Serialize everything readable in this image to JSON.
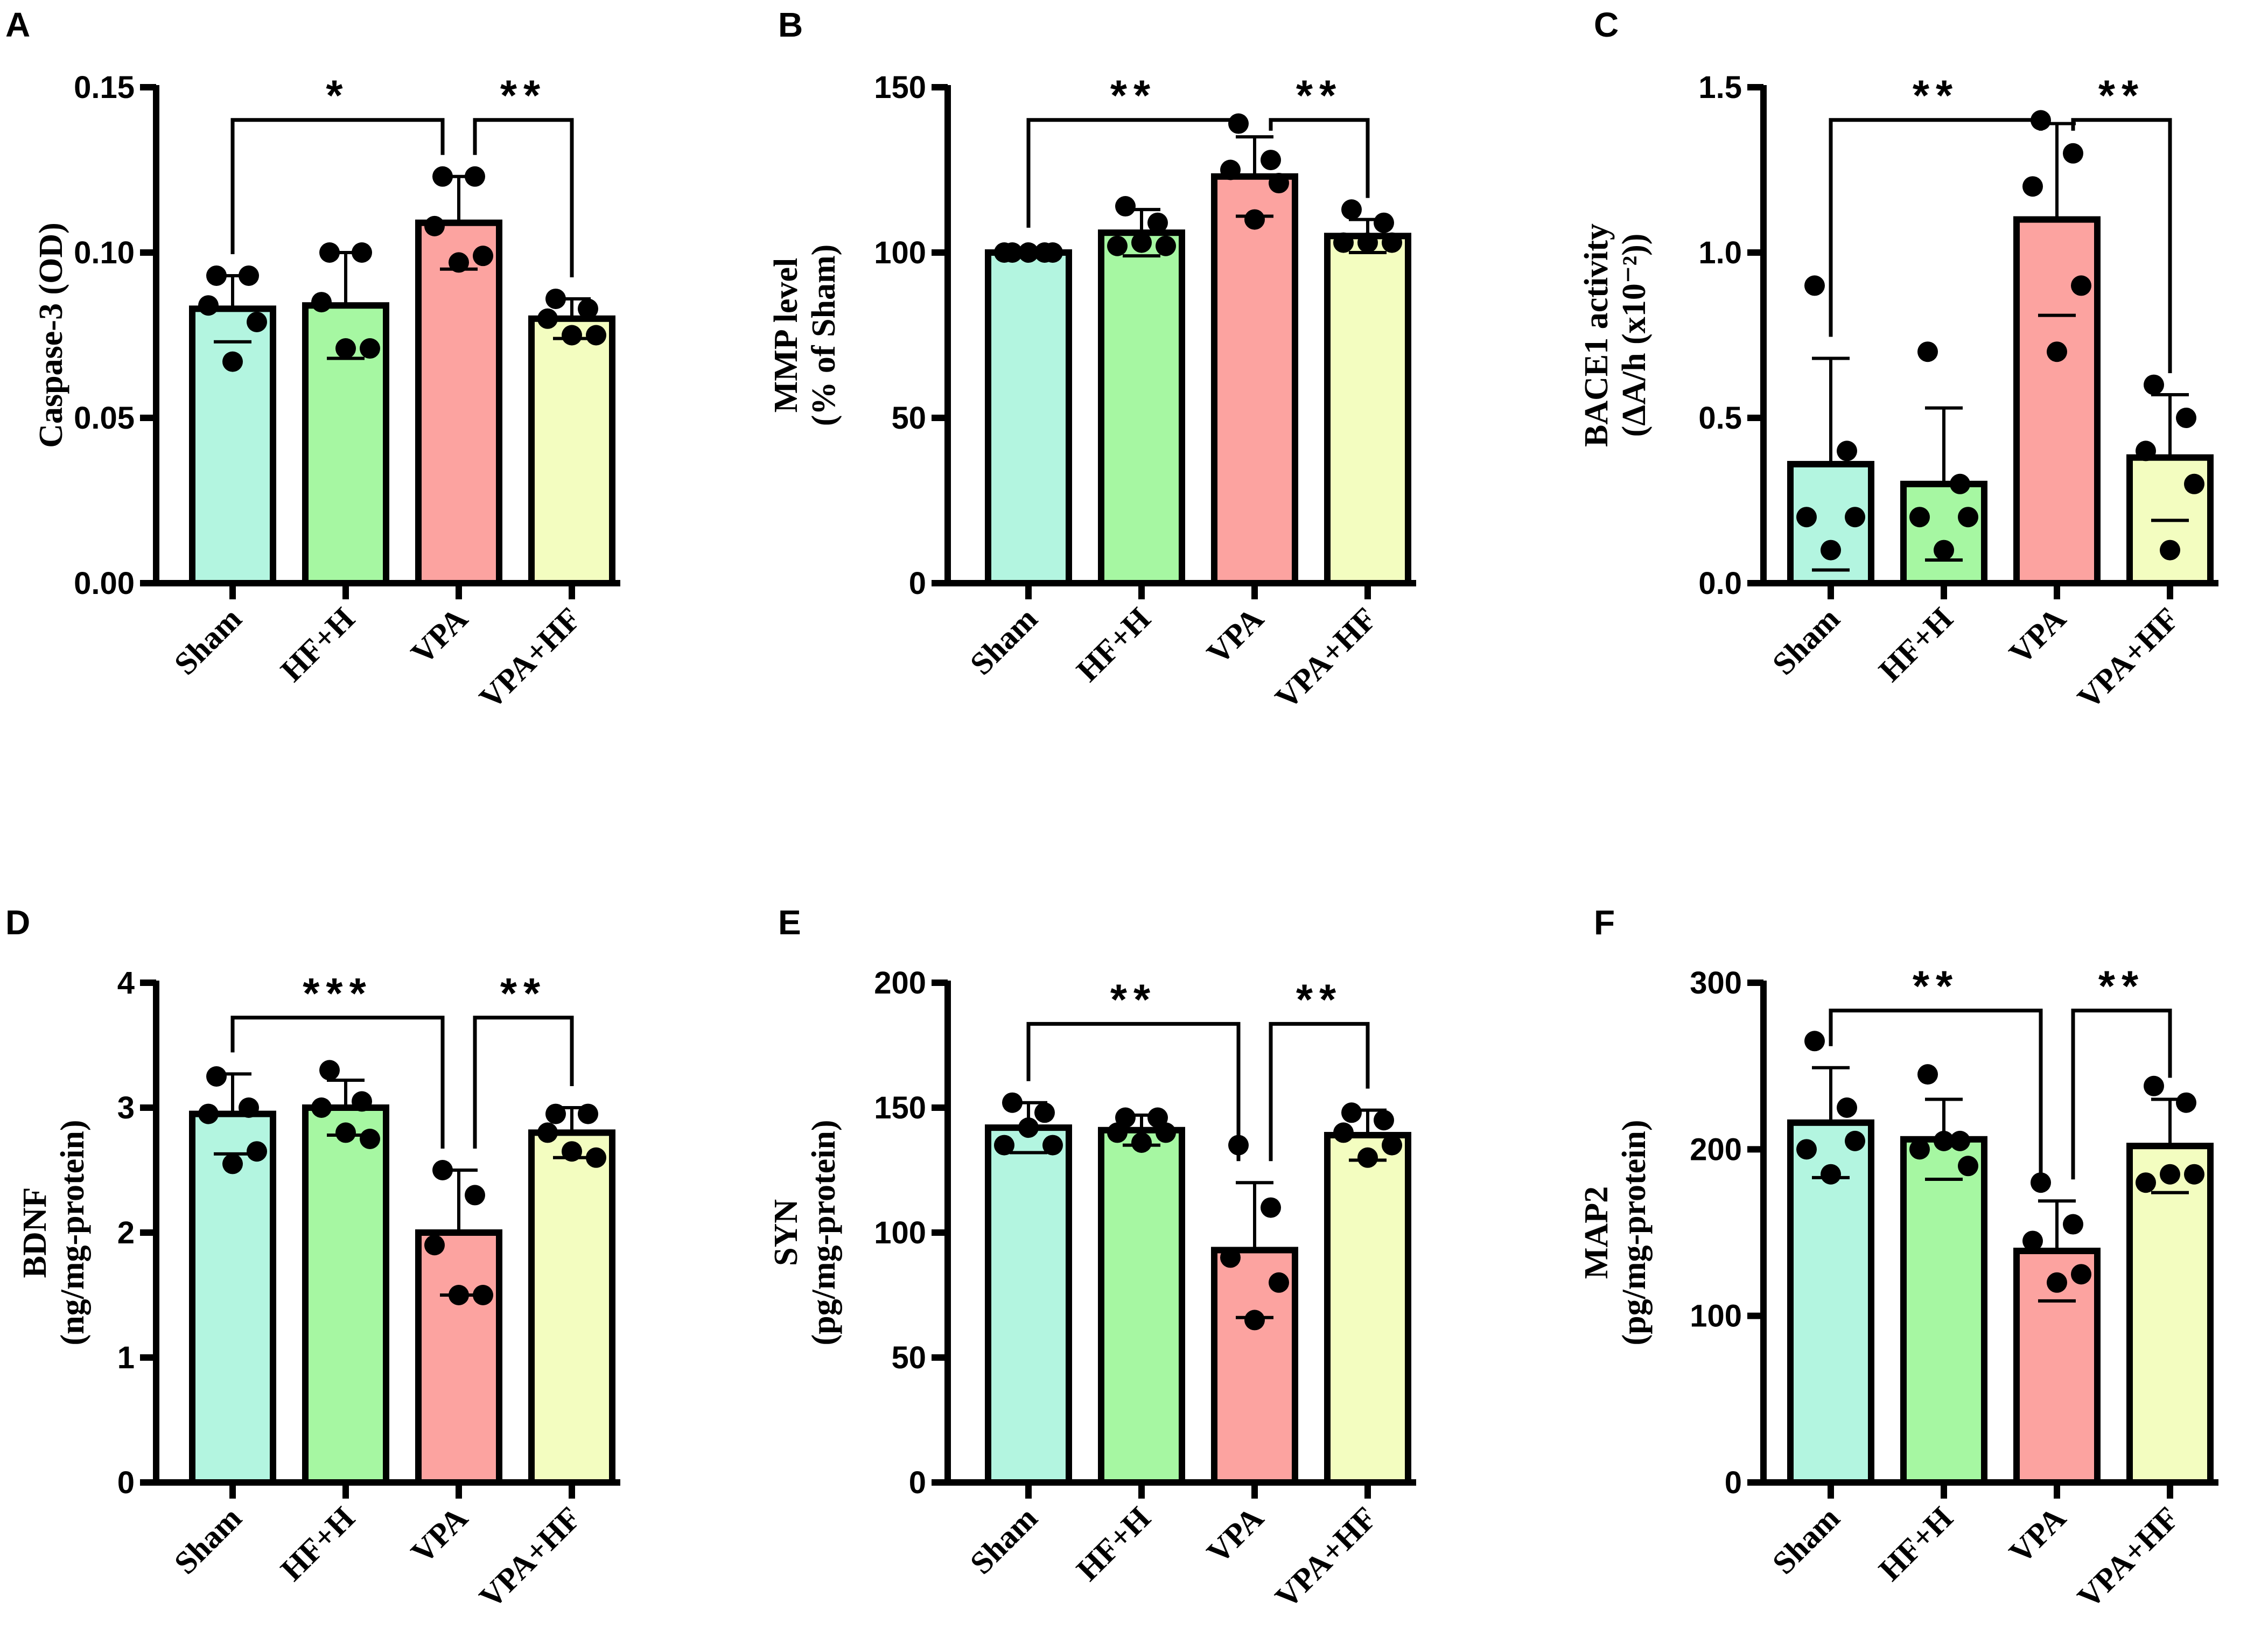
{
  "colors": {
    "Sham": "#b3f5e0",
    "HF+H": "#a6f7a2",
    "VPA": "#fca3a0",
    "VPA+HF": "#f3fdc0",
    "ink": "#000000"
  },
  "chart_data": [
    {
      "panel": "A",
      "type": "bar",
      "categories": [
        "Sham",
        "HF+H",
        "VPA",
        "VPA+HF"
      ],
      "ylabel": [
        "Caspase-3 (OD)"
      ],
      "ylim": [
        0,
        0.15
      ],
      "yticks": [
        "0.00",
        "0.05",
        "0.10",
        "0.15"
      ],
      "ytick_values": [
        0,
        0.05,
        0.1,
        0.15
      ],
      "values": [
        0.083,
        0.084,
        0.109,
        0.08
      ],
      "sd": [
        0.01,
        0.016,
        0.014,
        0.006
      ],
      "points": [
        [
          0.093,
          0.093,
          0.084,
          0.079,
          0.067
        ],
        [
          0.1,
          0.1,
          0.085,
          0.071,
          0.071
        ],
        [
          0.123,
          0.123,
          0.108,
          0.099,
          0.097
        ],
        [
          0.086,
          0.083,
          0.08,
          0.075,
          0.075
        ]
      ],
      "comparisons": [
        {
          "from": 0,
          "to": 2,
          "label": "*",
          "y": 0.145
        },
        {
          "from": 2,
          "to": 3,
          "label": "**",
          "y": 0.145
        }
      ]
    },
    {
      "panel": "B",
      "type": "bar",
      "categories": [
        "Sham",
        "HF+H",
        "VPA",
        "VPA+HF"
      ],
      "ylabel": [
        "MMP level",
        "(% of Sham)"
      ],
      "ylim": [
        0,
        150
      ],
      "yticks": [
        "0",
        "50",
        "100",
        "150"
      ],
      "ytick_values": [
        0,
        50,
        100,
        150
      ],
      "values": [
        100,
        106,
        123,
        105
      ],
      "sd": [
        1,
        7,
        12,
        5
      ],
      "points": [
        [
          100,
          100,
          100,
          100,
          100
        ],
        [
          114,
          109,
          102,
          102,
          103
        ],
        [
          139,
          128,
          125,
          121,
          110
        ],
        [
          113,
          109,
          103,
          103,
          103
        ]
      ],
      "comparisons": [
        {
          "from": 0,
          "to": 2,
          "label": "**",
          "y": 145
        },
        {
          "from": 2,
          "to": 3,
          "label": "**",
          "y": 145
        }
      ]
    },
    {
      "panel": "C",
      "type": "bar",
      "categories": [
        "Sham",
        "HF+H",
        "VPA",
        "VPA+HF"
      ],
      "ylabel": [
        "BACE1 activity",
        "(ΔA/h (x10⁻²))"
      ],
      "ylim": [
        0,
        1.5
      ],
      "yticks": [
        "0.0",
        "0.5",
        "1.0",
        "1.5"
      ],
      "ytick_values": [
        0,
        0.5,
        1.0,
        1.5
      ],
      "values": [
        0.36,
        0.3,
        1.1,
        0.38
      ],
      "sd": [
        0.32,
        0.23,
        0.29,
        0.19
      ],
      "points": [
        [
          0.9,
          0.4,
          0.2,
          0.2,
          0.1
        ],
        [
          0.7,
          0.3,
          0.2,
          0.2,
          0.1
        ],
        [
          1.4,
          1.3,
          1.2,
          0.9,
          0.7
        ],
        [
          0.6,
          0.5,
          0.4,
          0.3,
          0.1
        ]
      ],
      "comparisons": [
        {
          "from": 0,
          "to": 2,
          "label": "**",
          "y": 1.45
        },
        {
          "from": 2,
          "to": 3,
          "label": "**",
          "y": 1.45
        }
      ]
    },
    {
      "panel": "D",
      "type": "bar",
      "categories": [
        "Sham",
        "HF+H",
        "VPA",
        "VPA+HF"
      ],
      "ylabel": [
        "BDNF",
        "(ng/mg-protein)"
      ],
      "ylim": [
        0,
        4
      ],
      "yticks": [
        "0",
        "1",
        "2",
        "3",
        "4"
      ],
      "ytick_values": [
        0,
        1,
        2,
        3,
        4
      ],
      "values": [
        2.95,
        3.0,
        2.0,
        2.8
      ],
      "sd": [
        0.32,
        0.22,
        0.5,
        0.2
      ],
      "points": [
        [
          3.25,
          3.0,
          2.95,
          2.65,
          2.55
        ],
        [
          3.3,
          3.05,
          3.0,
          2.75,
          2.8
        ],
        [
          2.5,
          2.3,
          1.9,
          1.5,
          1.5
        ],
        [
          2.95,
          2.95,
          2.8,
          2.6,
          2.65
        ]
      ],
      "comparisons": [
        {
          "from": 0,
          "to": 2,
          "label": "***",
          "y": 3.85
        },
        {
          "from": 2,
          "to": 3,
          "label": "**",
          "y": 3.85
        }
      ]
    },
    {
      "panel": "E",
      "type": "bar",
      "categories": [
        "Sham",
        "HF+H",
        "VPA",
        "VPA+HF"
      ],
      "ylabel": [
        "SYN",
        "(pg/mg-protein)"
      ],
      "ylim": [
        0,
        200
      ],
      "yticks": [
        "0",
        "50",
        "100",
        "150",
        "200"
      ],
      "ytick_values": [
        0,
        50,
        100,
        150,
        200
      ],
      "values": [
        142,
        141,
        93,
        139
      ],
      "sd": [
        10,
        6,
        27,
        10
      ],
      "points": [
        [
          152,
          148,
          135,
          135,
          142
        ],
        [
          146,
          146,
          140,
          140,
          136
        ],
        [
          135,
          110,
          90,
          80,
          65
        ],
        [
          148,
          145,
          140,
          135,
          130
        ]
      ],
      "comparisons": [
        {
          "from": 0,
          "to": 2,
          "label": "**",
          "y": 190
        },
        {
          "from": 2,
          "to": 3,
          "label": "**",
          "y": 190
        }
      ]
    },
    {
      "panel": "F",
      "type": "bar",
      "categories": [
        "Sham",
        "HF+H",
        "VPA",
        "VPA+HF"
      ],
      "ylabel": [
        "MAP2",
        "(pg/mg-protein)"
      ],
      "ylim": [
        0,
        300
      ],
      "yticks": [
        "0",
        "100",
        "200",
        "300"
      ],
      "ytick_values": [
        0,
        100,
        200,
        300
      ],
      "values": [
        216,
        206,
        139,
        202
      ],
      "sd": [
        33,
        24,
        30,
        28
      ],
      "points": [
        [
          265,
          225,
          200,
          205,
          185
        ],
        [
          245,
          205,
          200,
          190,
          205
        ],
        [
          180,
          155,
          145,
          125,
          120
        ],
        [
          238,
          228,
          180,
          185,
          185
        ]
      ],
      "comparisons": [
        {
          "from": 0,
          "to": 2,
          "label": "**",
          "y": 293
        },
        {
          "from": 2,
          "to": 3,
          "label": "**",
          "y": 293
        }
      ]
    }
  ]
}
